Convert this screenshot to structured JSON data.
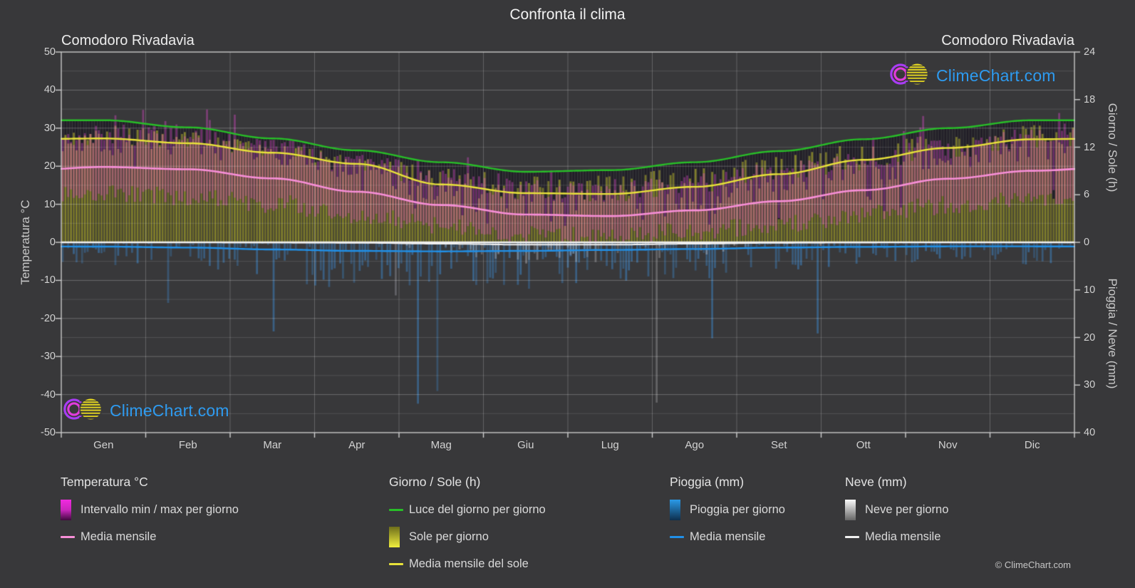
{
  "page": {
    "title": "Confronta il clima",
    "copyright": "© ClimeChart.com",
    "logo_text": "ClimeChart.com",
    "background_color": "#38383a"
  },
  "station": {
    "left": "Comodoro Rivadavia",
    "right": "Comodoro Rivadavia"
  },
  "axes": {
    "left": {
      "title": "Temperatura °C",
      "ticks": [
        50,
        40,
        30,
        20,
        10,
        0,
        -10,
        -20,
        -30,
        -40,
        -50
      ],
      "range": [
        -50,
        50
      ]
    },
    "right_sun": {
      "title": "Giorno / Sole (h)",
      "ticks": [
        24,
        18,
        12,
        6,
        0
      ],
      "range": [
        0,
        24
      ]
    },
    "right_rain": {
      "title": "Pioggia / Neve (mm)",
      "ticks": [
        10,
        20,
        30,
        40
      ],
      "range": [
        0,
        40
      ],
      "direction": "down"
    },
    "x": {
      "months": [
        "Gen",
        "Feb",
        "Mar",
        "Apr",
        "Mag",
        "Giu",
        "Lug",
        "Ago",
        "Set",
        "Ott",
        "Nov",
        "Dic"
      ]
    }
  },
  "legend": {
    "groups": [
      {
        "title": "Temperatura °C",
        "items": [
          {
            "label": "Intervallo min / max per giorno",
            "swatch": "bar",
            "colors": [
              "#f12ae0",
              "#c926bc",
              "#41093e"
            ]
          },
          {
            "label": "Media mensile",
            "swatch": "line",
            "colors": [
              "#f78fd8"
            ]
          }
        ]
      },
      {
        "title": "Giorno / Sole (h)",
        "items": [
          {
            "label": "Luce del giorno per giorno",
            "swatch": "line",
            "colors": [
              "#28be28"
            ]
          },
          {
            "label": "Sole per giorno",
            "swatch": "bar",
            "colors": [
              "#6e6e1a",
              "#f0ee3e"
            ]
          },
          {
            "label": "Media mensile del sole",
            "swatch": "line",
            "colors": [
              "#e8e23a"
            ]
          }
        ]
      },
      {
        "title": "Pioggia (mm)",
        "items": [
          {
            "label": "Pioggia per giorno",
            "swatch": "bar",
            "colors": [
              "#2b9ae8",
              "#0e2f4e"
            ]
          },
          {
            "label": "Media mensile",
            "swatch": "line",
            "colors": [
              "#2090e8"
            ]
          }
        ]
      },
      {
        "title": "Neve (mm)",
        "items": [
          {
            "label": "Neve per giorno",
            "swatch": "bar",
            "colors": [
              "#fafafa",
              "#666666"
            ]
          },
          {
            "label": "Media mensile",
            "swatch": "line",
            "colors": [
              "#f0f0f0"
            ]
          }
        ]
      }
    ]
  },
  "chart_data": {
    "type": "composite",
    "title": "Confronta il clima",
    "location": "Comodoro Rivadavia",
    "categories": [
      "Gen",
      "Feb",
      "Mar",
      "Apr",
      "Mag",
      "Giu",
      "Lug",
      "Ago",
      "Set",
      "Ott",
      "Nov",
      "Dic"
    ],
    "axis_ranges": {
      "temperature_c": [
        -50,
        50
      ],
      "sun_hours": [
        0,
        24
      ],
      "precip_mm": [
        0,
        40
      ]
    },
    "grid": true,
    "series": [
      {
        "name": "Luce del giorno per giorno",
        "type": "line",
        "axis": "sun",
        "unit": "h",
        "color": "#28be28",
        "monthly": [
          15.4,
          14.5,
          13.1,
          11.6,
          10.1,
          8.9,
          9.1,
          10.1,
          11.5,
          13.0,
          14.4,
          15.4
        ]
      },
      {
        "name": "Media mensile del sole",
        "type": "line",
        "axis": "sun",
        "unit": "h",
        "color": "#e8e23a",
        "monthly": [
          13.1,
          12.5,
          11.3,
          9.9,
          7.3,
          6.2,
          6.1,
          7.0,
          8.6,
          10.4,
          11.9,
          13.0
        ]
      },
      {
        "name": "Sole per giorno",
        "type": "daily-bar",
        "axis": "sun",
        "unit": "h",
        "color": "#96962a",
        "monthly_mean": [
          13.1,
          12.5,
          11.3,
          9.9,
          7.3,
          6.2,
          6.1,
          7.0,
          8.6,
          10.4,
          11.9,
          13.0
        ]
      },
      {
        "name": "Media mensile",
        "type": "line",
        "axis": "temperature",
        "unit": "°C",
        "color": "#f78fd8",
        "monthly": [
          19.8,
          19.2,
          16.8,
          13.3,
          9.8,
          7.3,
          6.9,
          8.4,
          10.8,
          13.7,
          16.7,
          18.8
        ]
      },
      {
        "name": "Intervallo min / max per giorno",
        "type": "daily-range-bar",
        "axis": "temperature",
        "unit": "°C",
        "color": "#e846d7",
        "monthly_max_mean": [
          28.3,
          27.6,
          25.0,
          21.0,
          17.0,
          13.6,
          13.2,
          15.2,
          18.2,
          21.6,
          24.8,
          27.2
        ],
        "monthly_min_mean": [
          12.8,
          12.2,
          10.2,
          7.2,
          4.2,
          2.0,
          1.7,
          2.9,
          4.8,
          7.2,
          9.7,
          11.8
        ]
      },
      {
        "name": "Pioggia per giorno",
        "type": "daily-bar",
        "axis": "precip",
        "unit": "mm",
        "color": "#3c82c8",
        "monthly_mean": [
          0.9,
          1.1,
          1.5,
          1.8,
          1.9,
          1.8,
          1.6,
          1.4,
          1.1,
          0.95,
          0.85,
          0.85
        ]
      },
      {
        "name": "Media mensile",
        "type": "line",
        "axis": "precip",
        "unit": "mm",
        "color": "#2090e8",
        "monthly": [
          0.9,
          1.1,
          1.5,
          1.8,
          1.9,
          1.8,
          1.6,
          1.4,
          1.1,
          0.95,
          0.85,
          0.85
        ]
      },
      {
        "name": "Neve per giorno",
        "type": "daily-bar",
        "axis": "precip",
        "unit": "mm",
        "color": "#c8c8cd",
        "monthly_mean": [
          0,
          0,
          0.05,
          0.1,
          0.3,
          0.5,
          0.5,
          0.3,
          0.1,
          0.02,
          0,
          0
        ]
      },
      {
        "name": "Media mensile",
        "type": "line",
        "axis": "precip",
        "unit": "mm",
        "color": "#f0f0f0",
        "monthly": [
          0,
          0,
          0.05,
          0.1,
          0.3,
          0.5,
          0.5,
          0.3,
          0.1,
          0.02,
          0,
          0
        ]
      }
    ]
  }
}
